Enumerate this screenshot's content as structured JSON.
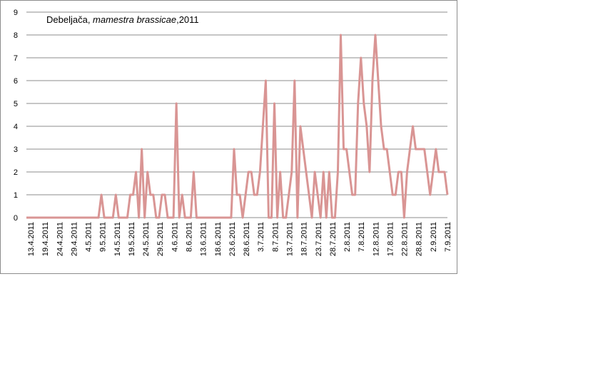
{
  "chart_data": {
    "type": "line",
    "title_parts": [
      "Debeljača, ",
      "mamestra brassicae",
      ",2011"
    ],
    "xlabel": "",
    "ylabel": "",
    "ylim": [
      0,
      9
    ],
    "yticks": [
      "0",
      "1",
      "2",
      "3",
      "4",
      "5",
      "6",
      "7",
      "8",
      "9"
    ],
    "grid": "horizontal",
    "line_color": "#d99594",
    "x_start": "13.4.2011",
    "x_end": "7.9.2011",
    "x_tick_labels": [
      "13.4.2011",
      "19.4.2011",
      "24.4.2011",
      "29.4.2011",
      "4.5.2011",
      "9.5.2011",
      "14.5.2011",
      "19.5.2011",
      "24.5.2011",
      "29.5.2011",
      "4.6.2011",
      "8.6.2011",
      "13.6.2011",
      "18.6.2011",
      "23.6.2011",
      "28.6.2011",
      "3.7.2011",
      "8.7.2011",
      "13.7.2011",
      "18.7.2011",
      "23.7.2011",
      "28.7.2011",
      "2.8.2011",
      "7.8.2011",
      "12.8.2011",
      "17.8.2011",
      "22.8.2011",
      "28.8.2011",
      "2.9.2011",
      "7.9.2011"
    ],
    "series": [
      {
        "values": [
          0,
          0,
          0,
          0,
          0,
          0,
          0,
          0,
          0,
          0,
          0,
          0,
          0,
          0,
          0,
          0,
          0,
          0,
          0,
          0,
          0,
          0,
          0,
          0,
          0,
          0,
          1,
          0,
          0,
          0,
          0,
          1,
          0,
          0,
          0,
          0,
          1,
          1,
          2,
          0,
          3,
          0,
          2,
          1,
          1,
          0,
          0,
          1,
          1,
          0,
          0,
          0,
          5,
          0,
          1,
          0,
          0,
          0,
          2,
          0,
          0,
          0,
          0,
          0,
          0,
          0,
          0,
          0,
          0,
          0,
          0,
          0,
          3,
          1,
          1,
          0,
          1,
          2,
          2,
          1,
          1,
          2,
          4,
          6,
          0,
          0,
          5,
          0,
          2,
          0,
          0,
          1,
          2,
          6,
          0,
          4,
          3,
          2,
          1,
          0,
          2,
          1,
          0,
          2,
          0,
          2,
          0,
          0,
          2,
          8,
          3,
          3,
          2,
          1,
          1,
          5,
          7,
          5,
          4,
          2,
          6,
          8,
          6,
          4,
          3,
          3,
          2,
          1,
          1,
          2,
          2,
          0,
          2,
          3,
          4,
          3,
          3,
          3,
          3,
          2,
          1,
          2,
          3,
          2,
          2,
          2,
          1
        ]
      }
    ]
  }
}
